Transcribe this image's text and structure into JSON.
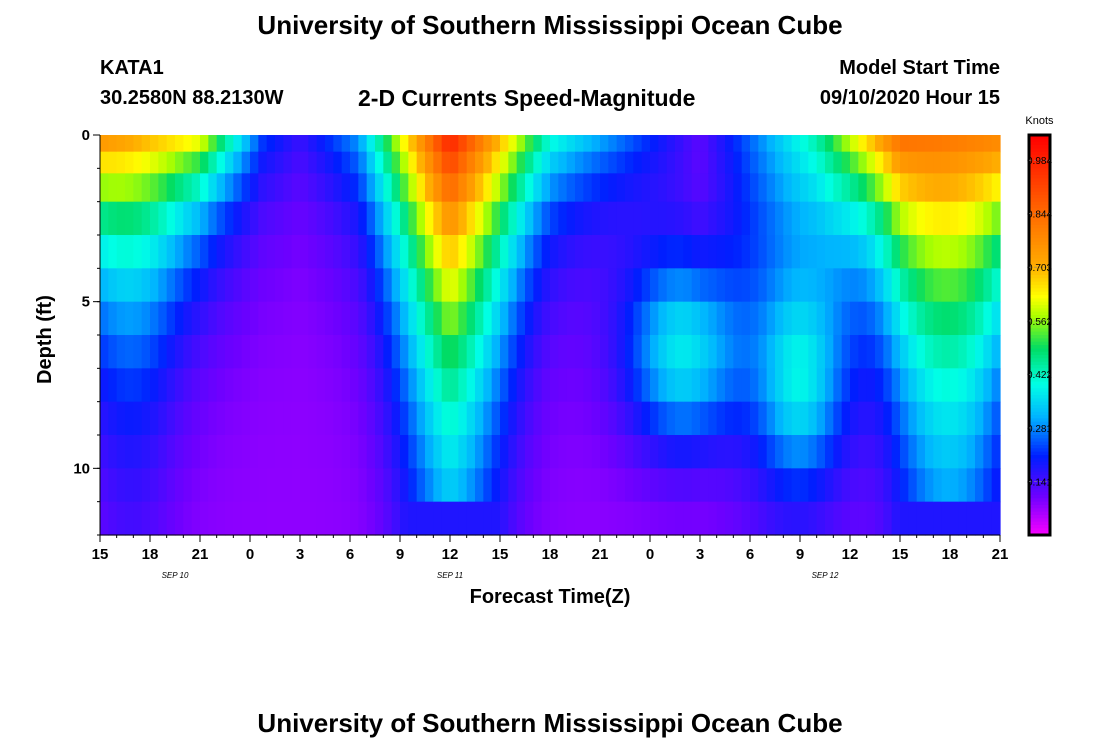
{
  "header": {
    "title_top": "University of Southern Mississippi Ocean Cube",
    "title_bottom": "University of Southern Mississippi Ocean Cube",
    "station": "KATA1",
    "coords": "30.2580N 88.2130W",
    "subtitle": "2-D Currents Speed-Magnitude",
    "model_label": "Model Start Time",
    "model_time": "09/10/2020 Hour 15"
  },
  "chart_data": {
    "type": "heatmap",
    "xlabel": "Forecast Time(Z)",
    "ylabel": "Depth (ft)",
    "x_range_hours": [
      0,
      54
    ],
    "x_tick_labels": [
      "15",
      "18",
      "21",
      "0",
      "3",
      "6",
      "9",
      "12",
      "15",
      "18",
      "21",
      "0",
      "3",
      "6",
      "9",
      "12",
      "15",
      "18",
      "21"
    ],
    "x_date_labels": [
      {
        "label": "SEP 10",
        "hour": 4.5
      },
      {
        "label": "SEP 11",
        "hour": 21
      },
      {
        "label": "SEP 12",
        "hour": 43.5
      }
    ],
    "y_range": [
      0,
      12
    ],
    "y_tick_labels": [
      {
        "value": 0,
        "label": "0"
      },
      {
        "value": 5,
        "label": "5"
      },
      {
        "value": 10,
        "label": "10"
      }
    ],
    "depth_levels": [
      0.2,
      0.8,
      1.5,
      2.5,
      3.5,
      4.5,
      5.5,
      6.5,
      7.5,
      8.5,
      9.5,
      10.5,
      11.5
    ],
    "colorbar": {
      "title": "Knots",
      "min": 0.0,
      "max": 1.05,
      "tick_labels": [
        "0.984",
        "0.844",
        "0.703",
        "0.562",
        "0.422",
        "0.281",
        "0.141"
      ],
      "tick_values": [
        0.984,
        0.844,
        0.703,
        0.562,
        0.422,
        0.281,
        0.141
      ]
    },
    "approximate_field": {
      "surface_speed_by_hour": [
        {
          "hour": 0,
          "knots": 0.78
        },
        {
          "hour": 6,
          "knots": 0.65
        },
        {
          "hour": 9.7,
          "knots": 0.24
        },
        {
          "hour": 12,
          "knots": 0.16
        },
        {
          "hour": 15.5,
          "knots": 0.3
        },
        {
          "hour": 21,
          "knots": 1.0
        },
        {
          "hour": 27,
          "knots": 0.42
        },
        {
          "hour": 36,
          "knots": 0.12
        },
        {
          "hour": 43,
          "knots": 0.45
        },
        {
          "hour": 48,
          "knots": 0.85
        },
        {
          "hour": 54,
          "knots": 0.8
        }
      ],
      "bottom_speed_knots": 0.08
    },
    "grid": false
  }
}
